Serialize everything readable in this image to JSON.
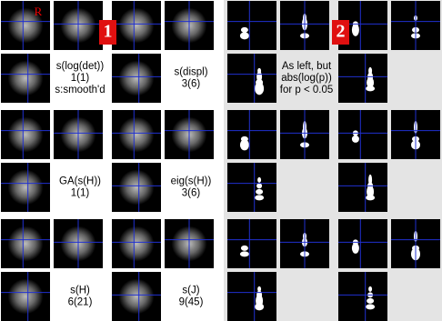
{
  "markers": {
    "orientation": "R",
    "panel_left": "1",
    "panel_right": "2"
  },
  "left_labels": [
    [
      "s(log(det))",
      "1(1)",
      "s:smooth'd"
    ],
    [
      "s(displ)",
      "3(6)"
    ],
    [
      "GA(s(H))",
      "1(1)"
    ],
    [
      "eig(s(H))",
      "3(6)"
    ],
    [
      "s(H)",
      "6(21)"
    ],
    [
      "s(J)",
      "9(45)"
    ]
  ],
  "right_label": [
    "As left, but",
    "abs(log(p))",
    "for p < 0.05"
  ]
}
